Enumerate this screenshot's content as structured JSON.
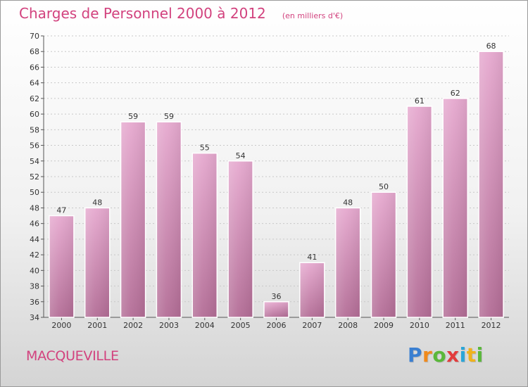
{
  "title": "Charges de Personnel 2000 à 2012",
  "subtitle": "(en milliers d'€)",
  "city": "MACQUEVILLE",
  "logo": {
    "letters": [
      "P",
      "r",
      "o",
      "x",
      "i",
      "t",
      "i"
    ],
    "colors": [
      "#3a7fd1",
      "#f08a1c",
      "#5ab83a",
      "#e23b3b",
      "#2aa6d8",
      "#f0b21c",
      "#5ab83a"
    ]
  },
  "colors": {
    "bar_top": "#e6a9cf",
    "bar_bottom": "#b36d96",
    "accent": "#d2427e"
  },
  "chart_data": {
    "type": "bar",
    "title": "Charges de Personnel 2000 à 2012",
    "categories": [
      "2000",
      "2001",
      "2002",
      "2003",
      "2004",
      "2005",
      "2006",
      "2007",
      "2008",
      "2009",
      "2010",
      "2011",
      "2012"
    ],
    "values": [
      47,
      48,
      59,
      59,
      55,
      54,
      36,
      41,
      48,
      50,
      61,
      62,
      68
    ],
    "data_labels": [
      "47",
      "48",
      "59",
      "59",
      "55",
      "54",
      "36",
      "41",
      "48",
      "50",
      "61",
      "62",
      "68"
    ],
    "ylim": [
      34,
      70
    ],
    "yticks": [
      "34",
      "36",
      "38",
      "40",
      "42",
      "44",
      "46",
      "48",
      "50",
      "52",
      "54",
      "56",
      "58",
      "60",
      "62",
      "64",
      "66",
      "68",
      "70"
    ],
    "grid": true,
    "legend": "none"
  }
}
